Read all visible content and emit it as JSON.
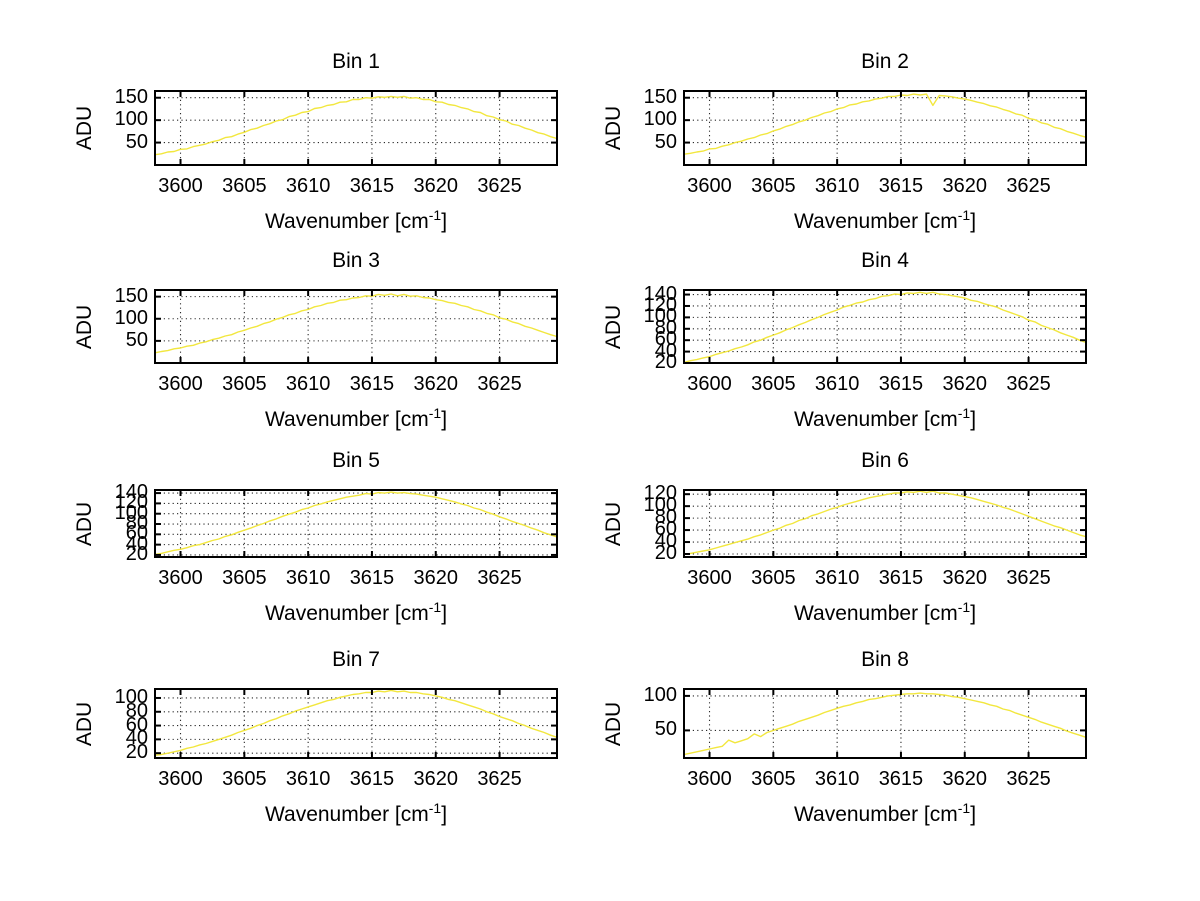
{
  "labels": {
    "ylabel": "ADU",
    "xlabel_main": "Wavenumber [cm",
    "xlabel_sup": "-1",
    "xlabel_close": "]"
  },
  "colors": {
    "background": "#ffffff",
    "line": "#f2e73e",
    "axis": "#000000",
    "grid": "#2a2a2a",
    "text": "#000000"
  },
  "chart_data": [
    {
      "type": "line",
      "title": "Bin 1",
      "ylabel": "ADU",
      "x_start": 3598,
      "x_step": 0.5,
      "xlim": [
        3598,
        3629.5
      ],
      "ylim": [
        0,
        165
      ],
      "xticks": [
        3600,
        3605,
        3610,
        3615,
        3620,
        3625
      ],
      "yticks": [
        50,
        100,
        150
      ],
      "grid": true,
      "legend": false,
      "y": [
        23,
        25,
        29,
        30,
        35,
        36,
        41,
        44,
        47,
        52,
        55,
        61,
        63,
        69,
        73,
        79,
        82,
        88,
        92,
        98,
        101,
        108,
        111,
        117,
        119,
        126,
        128,
        133,
        135,
        140,
        141,
        146,
        146,
        150,
        149,
        152,
        151,
        153,
        151,
        153,
        149,
        150,
        146,
        146,
        141,
        140,
        135,
        133,
        128,
        125,
        119,
        117,
        110,
        107,
        101,
        98,
        91,
        88,
        82,
        78,
        72,
        69,
        63,
        59
      ]
    },
    {
      "type": "line",
      "title": "Bin 2",
      "ylabel": "ADU",
      "x_start": 3598,
      "x_step": 0.5,
      "xlim": [
        3598,
        3629.5
      ],
      "ylim": [
        0,
        165
      ],
      "xticks": [
        3600,
        3605,
        3610,
        3615,
        3620,
        3625
      ],
      "yticks": [
        50,
        100,
        150
      ],
      "grid": true,
      "legend": false,
      "y": [
        24,
        26,
        29,
        31,
        36,
        37,
        42,
        45,
        50,
        53,
        58,
        61,
        67,
        70,
        76,
        80,
        86,
        90,
        96,
        100,
        106,
        110,
        116,
        119,
        125,
        128,
        134,
        136,
        141,
        143,
        147,
        149,
        153,
        153,
        156,
        155,
        158,
        156,
        158,
        133,
        155,
        154,
        152,
        149,
        147,
        144,
        140,
        137,
        132,
        129,
        124,
        120,
        114,
        111,
        104,
        101,
        94,
        91,
        84,
        81,
        75,
        71,
        66,
        62
      ]
    },
    {
      "type": "line",
      "title": "Bin 3",
      "ylabel": "ADU",
      "x_start": 3598,
      "x_step": 0.5,
      "xlim": [
        3598,
        3629.5
      ],
      "ylim": [
        0,
        165
      ],
      "xticks": [
        3600,
        3605,
        3610,
        3615,
        3620,
        3625
      ],
      "yticks": [
        50,
        100,
        150
      ],
      "grid": true,
      "legend": false,
      "y": [
        23,
        26,
        28,
        32,
        34,
        38,
        40,
        45,
        48,
        53,
        56,
        61,
        64,
        70,
        74,
        79,
        83,
        89,
        93,
        99,
        103,
        109,
        112,
        118,
        121,
        127,
        130,
        135,
        137,
        142,
        143,
        147,
        148,
        152,
        151,
        155,
        153,
        156,
        152,
        155,
        151,
        152,
        148,
        147,
        143,
        141,
        137,
        135,
        130,
        127,
        121,
        118,
        112,
        109,
        102,
        99,
        93,
        89,
        83,
        79,
        74,
        69,
        64,
        60
      ]
    },
    {
      "type": "line",
      "title": "Bin 4",
      "ylabel": "ADU",
      "x_start": 3598,
      "x_step": 0.5,
      "xlim": [
        3598,
        3629.5
      ],
      "ylim": [
        20,
        148
      ],
      "xticks": [
        3600,
        3605,
        3610,
        3615,
        3620,
        3625
      ],
      "yticks": [
        20,
        40,
        60,
        80,
        100,
        120,
        140
      ],
      "grid": true,
      "legend": false,
      "y": [
        21,
        24,
        26,
        29,
        31,
        35,
        38,
        41,
        45,
        48,
        52,
        57,
        60,
        65,
        69,
        73,
        78,
        82,
        87,
        91,
        96,
        100,
        105,
        109,
        113,
        118,
        121,
        125,
        127,
        131,
        133,
        137,
        138,
        141,
        140,
        143,
        142,
        144,
        142,
        144,
        141,
        140,
        138,
        136,
        134,
        130,
        128,
        124,
        121,
        118,
        113,
        109,
        105,
        101,
        95,
        92,
        86,
        82,
        78,
        73,
        69,
        65,
        60,
        56
      ]
    },
    {
      "type": "line",
      "title": "Bin 5",
      "ylabel": "ADU",
      "x_start": 3598,
      "x_step": 0.5,
      "xlim": [
        3598,
        3629.5
      ],
      "ylim": [
        16,
        146
      ],
      "xticks": [
        3600,
        3605,
        3610,
        3615,
        3620,
        3625
      ],
      "yticks": [
        20,
        40,
        60,
        80,
        100,
        120,
        140
      ],
      "grid": true,
      "legend": false,
      "y": [
        21,
        23,
        26,
        29,
        31,
        34,
        38,
        40,
        44,
        48,
        51,
        56,
        59,
        64,
        68,
        72,
        77,
        81,
        86,
        90,
        95,
        99,
        103,
        108,
        111,
        116,
        119,
        123,
        126,
        129,
        132,
        134,
        136,
        139,
        138,
        141,
        140,
        142,
        140,
        141,
        139,
        138,
        136,
        134,
        132,
        129,
        126,
        123,
        119,
        116,
        111,
        108,
        103,
        99,
        94,
        90,
        85,
        81,
        77,
        72,
        68,
        63,
        59,
        55
      ]
    },
    {
      "type": "line",
      "title": "Bin 6",
      "ylabel": "ADU",
      "x_start": 3598,
      "x_step": 0.5,
      "xlim": [
        3598,
        3629.5
      ],
      "ylim": [
        15,
        127
      ],
      "xticks": [
        3600,
        3605,
        3610,
        3615,
        3620,
        3625
      ],
      "yticks": [
        20,
        40,
        60,
        80,
        100,
        120
      ],
      "grid": true,
      "legend": false,
      "y": [
        19,
        21,
        23,
        25,
        27,
        30,
        33,
        36,
        39,
        42,
        45,
        49,
        52,
        56,
        60,
        63,
        68,
        71,
        76,
        79,
        84,
        87,
        91,
        95,
        98,
        102,
        105,
        108,
        111,
        114,
        116,
        118,
        120,
        122,
        122,
        124,
        123,
        125,
        123,
        125,
        122,
        122,
        120,
        118,
        116,
        114,
        111,
        108,
        105,
        102,
        98,
        95,
        91,
        87,
        83,
        79,
        75,
        71,
        67,
        64,
        60,
        56,
        52,
        49
      ]
    },
    {
      "type": "line",
      "title": "Bin 7",
      "ylabel": "ADU",
      "x_start": 3598,
      "x_step": 0.5,
      "xlim": [
        3598,
        3629.5
      ],
      "ylim": [
        13,
        113
      ],
      "xticks": [
        3600,
        3605,
        3610,
        3615,
        3620,
        3625
      ],
      "yticks": [
        20,
        40,
        60,
        80,
        100
      ],
      "grid": true,
      "legend": false,
      "y": [
        17,
        18,
        20,
        22,
        24,
        27,
        29,
        32,
        34,
        37,
        40,
        43,
        46,
        50,
        53,
        56,
        60,
        63,
        67,
        70,
        74,
        77,
        81,
        84,
        87,
        90,
        93,
        96,
        98,
        101,
        103,
        105,
        106,
        108,
        108,
        110,
        109,
        111,
        109,
        110,
        108,
        108,
        106,
        105,
        103,
        101,
        98,
        96,
        93,
        90,
        87,
        84,
        80,
        77,
        73,
        70,
        67,
        63,
        60,
        56,
        53,
        50,
        46,
        43
      ]
    },
    {
      "type": "line",
      "title": "Bin 8",
      "ylabel": "ADU",
      "x_start": 3598,
      "x_step": 0.5,
      "xlim": [
        3598,
        3629.5
      ],
      "ylim": [
        10,
        110
      ],
      "xticks": [
        3600,
        3605,
        3610,
        3615,
        3620,
        3625
      ],
      "yticks": [
        50,
        100
      ],
      "grid": true,
      "legend": false,
      "y": [
        15,
        17,
        19,
        21,
        23,
        25,
        27,
        36,
        32,
        35,
        38,
        45,
        41,
        47,
        50,
        53,
        56,
        59,
        63,
        66,
        69,
        72,
        76,
        79,
        82,
        85,
        87,
        90,
        92,
        95,
        96,
        98,
        100,
        101,
        102,
        103,
        103,
        104,
        103,
        103,
        102,
        101,
        99,
        98,
        96,
        94,
        92,
        90,
        87,
        85,
        81,
        79,
        75,
        72,
        69,
        66,
        62,
        59,
        56,
        53,
        49,
        46,
        43,
        40
      ]
    }
  ]
}
